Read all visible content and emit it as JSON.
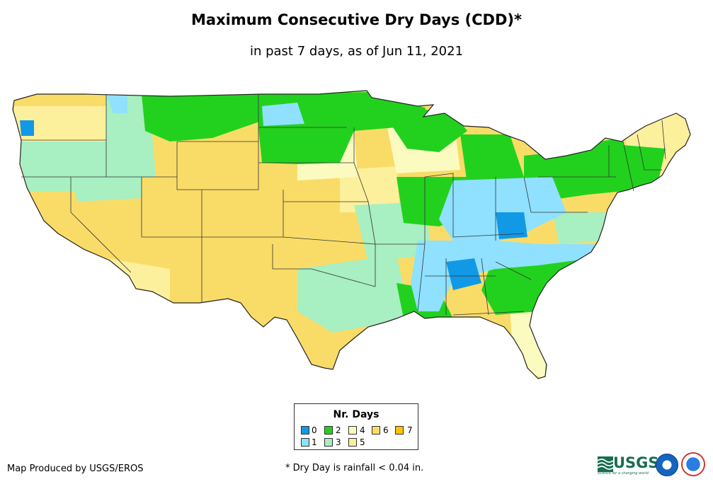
{
  "title": "Maximum Consecutive Dry Days (CDD)*",
  "subtitle": "in past 7 days, as of Jun 11, 2021",
  "legend": {
    "title": "Nr. Days",
    "items": [
      {
        "label": "0",
        "color": "#1199e6"
      },
      {
        "label": "1",
        "color": "#8fe1ff"
      },
      {
        "label": "2",
        "color": "#22d11e"
      },
      {
        "label": "3",
        "color": "#a8efc1"
      },
      {
        "label": "4",
        "color": "#fbfbbf"
      },
      {
        "label": "5",
        "color": "#fdf09c"
      },
      {
        "label": "6",
        "color": "#f9dc68"
      },
      {
        "label": "7",
        "color": "#ffc400"
      }
    ]
  },
  "credit": "Map Produced by USGS/EROS",
  "footnote": "* Dry Day is rainfall < 0.04 in.",
  "logos": {
    "usgs": "USGS",
    "usgs_tagline": "science for a changing world"
  }
}
